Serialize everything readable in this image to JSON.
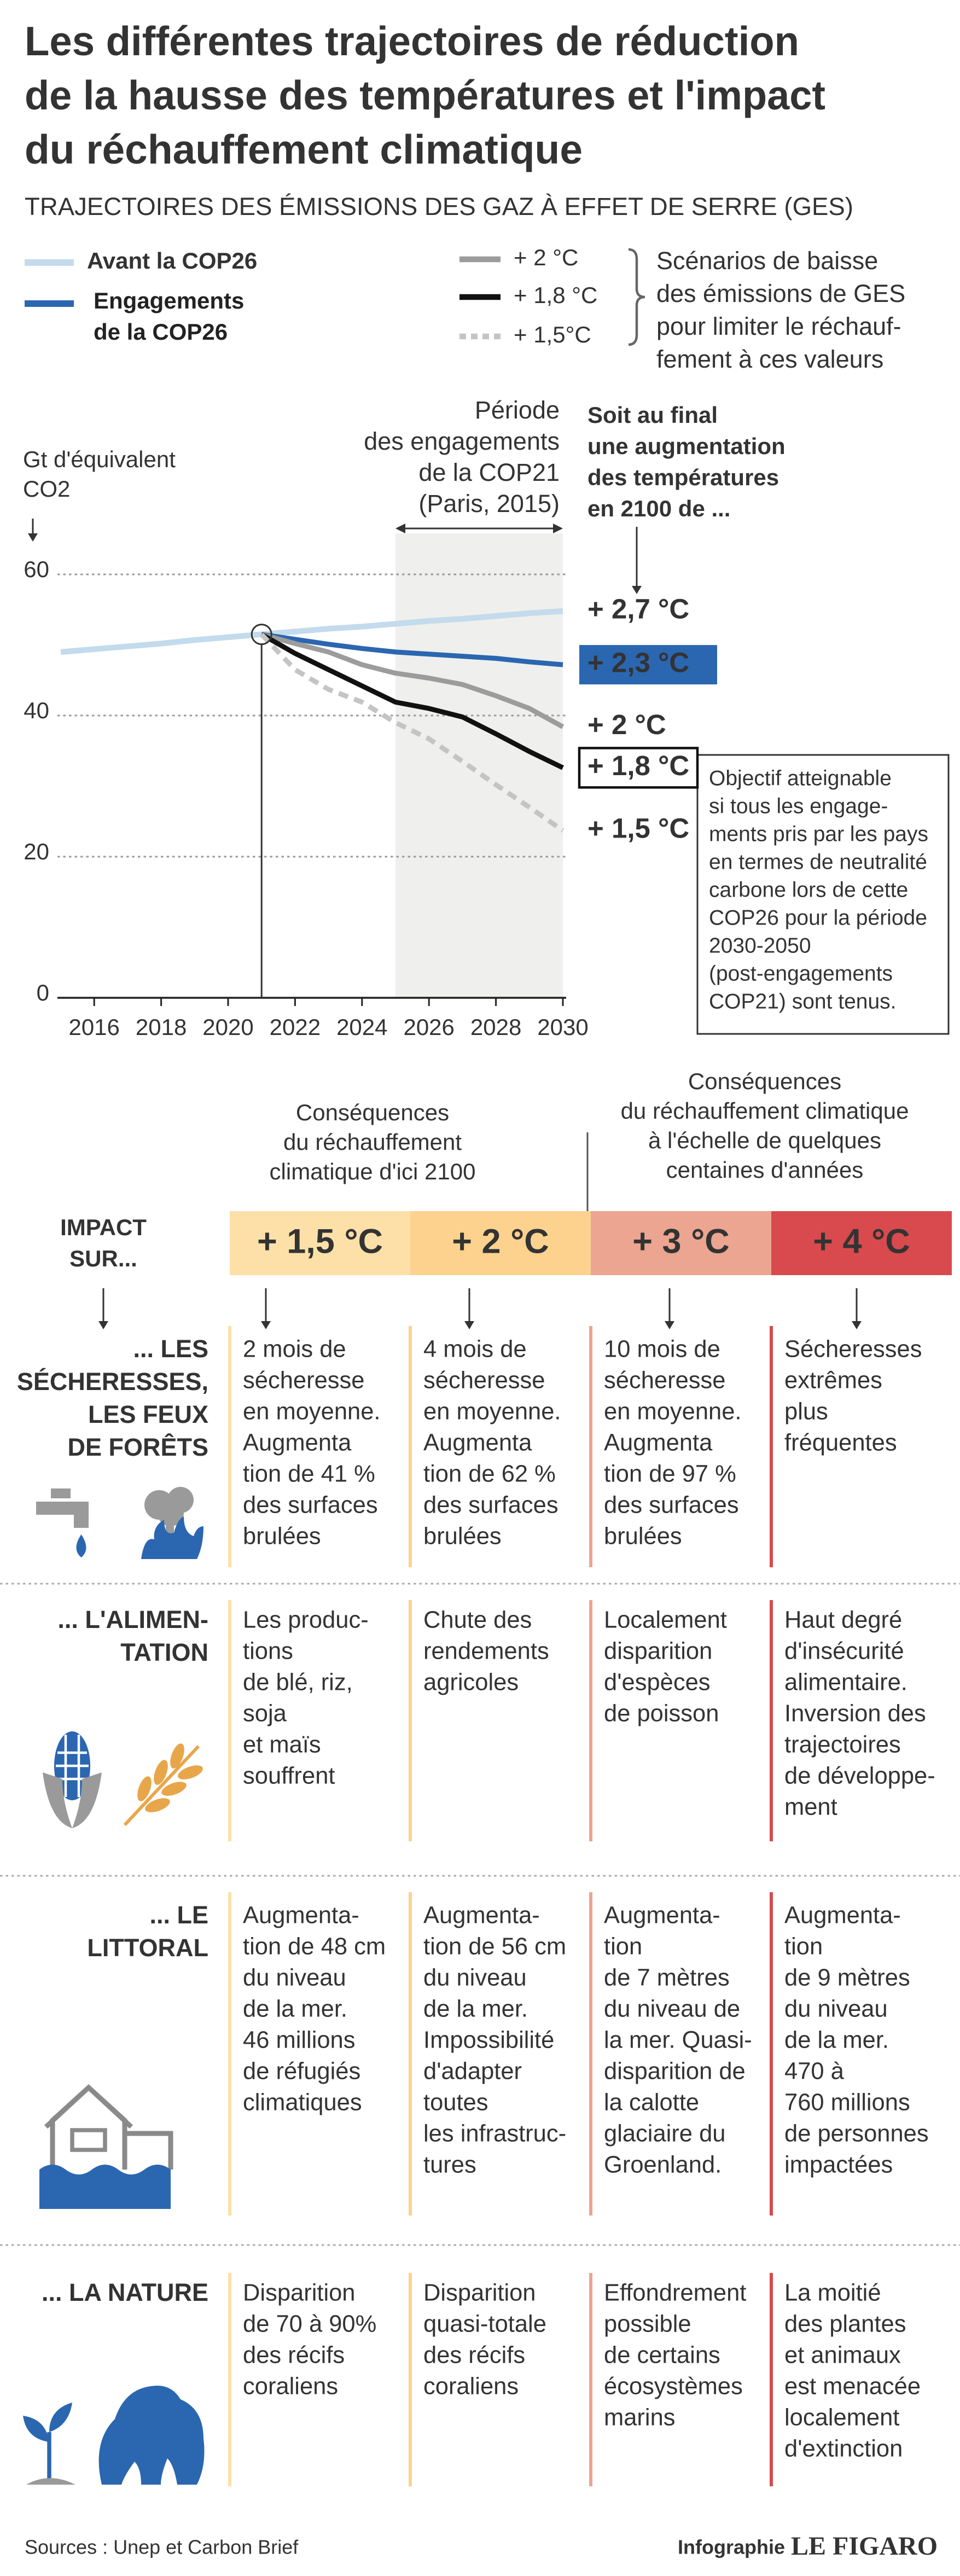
{
  "header": {
    "title": [
      "Les différentes trajectoires de réduction",
      "de la hausse des températures et l'impact",
      "du réchauffement climatique"
    ],
    "subtitle": "TRAJECTOIRES DES ÉMISSIONS DES GAZ À EFFET DE SERRE (GES)"
  },
  "chart_data": {
    "type": "line",
    "ylabel": [
      "Gt d'équivalent",
      "CO2"
    ],
    "x": [
      2015,
      2016,
      2017,
      2018,
      2019,
      2020,
      2021,
      2022,
      2023,
      2024,
      2025,
      2026,
      2027,
      2028,
      2029,
      2030
    ],
    "xlim": [
      2015,
      2030
    ],
    "xticks": [
      2016,
      2018,
      2020,
      2022,
      2024,
      2026,
      2028,
      2030
    ],
    "ylim": [
      0,
      60
    ],
    "yticks": [
      0,
      20,
      40,
      60
    ],
    "grid": true,
    "highlight_x": 2021,
    "period": {
      "start": 2025,
      "end": 2030,
      "label": [
        "Période",
        "des engagements",
        "de la COP21",
        "(Paris, 2015)"
      ]
    },
    "series": [
      {
        "name": "Avant la COP26",
        "color": "#c3dbec",
        "end_label": "+ 2,7 °C",
        "values": [
          49,
          49.4,
          49.8,
          50.2,
          50.7,
          51.1,
          51.5,
          51.9,
          52.3,
          52.6,
          53,
          53.4,
          53.7,
          54.1,
          54.5,
          54.8
        ]
      },
      {
        "name": "Engagements de la COP26",
        "color": "#2b66b0",
        "end_label": "+ 2,3 °C",
        "values": [
          null,
          null,
          null,
          null,
          null,
          null,
          51.5,
          50.8,
          50.1,
          49.5,
          49,
          48.7,
          48.4,
          48.1,
          47.6,
          47.2
        ]
      },
      {
        "name": "+ 2 °C",
        "color": "#9c9c9c",
        "end_label": "+ 2 °C",
        "values": [
          null,
          null,
          null,
          null,
          null,
          null,
          51.5,
          50.2,
          49,
          47.2,
          46,
          45.3,
          44.4,
          42.8,
          41,
          38.4
        ]
      },
      {
        "name": "+ 1,8 °C",
        "color": "#111111",
        "end_label": "+ 1,8 °C",
        "values": [
          null,
          null,
          null,
          null,
          null,
          null,
          51.5,
          48.8,
          46.5,
          44.2,
          41.9,
          41,
          39.8,
          37.4,
          34.9,
          32.6
        ]
      },
      {
        "name": "+ 1,5°C",
        "color": "#c4c4c4",
        "dash": true,
        "end_label": "+ 1,5 °C",
        "values": [
          null,
          null,
          null,
          null,
          null,
          null,
          51.5,
          46.5,
          43.7,
          41.9,
          39,
          36.7,
          33.5,
          30.2,
          27,
          23.7
        ]
      }
    ],
    "scenario_note": [
      "Scénarios de baisse",
      "des émissions de GES",
      "pour limiter le réchauf-",
      "fement à ces valeurs"
    ],
    "end_note": [
      "Soit au final",
      "une augmentation",
      "des températures",
      "en 2100 de ..."
    ],
    "objective_note": [
      "Objectif atteignable",
      "si tous les engage-",
      "ments pris par les pays",
      "en termes de neutralité",
      "carbone lors de cette",
      "COP26 pour la période",
      "2030-2050",
      "(post-engagements",
      "COP21) sont tenus."
    ]
  },
  "impact": {
    "intro": [
      "IMPACT",
      "SUR..."
    ],
    "periods": [
      [
        "Conséquences",
        "du réchauffement",
        "climatique d'ici 2100"
      ],
      [
        "Conséquences",
        "du réchauffement climatique",
        "à l'échelle de quelques",
        "centaines d'années"
      ]
    ],
    "columns": [
      {
        "label": "+ 1,5 °C",
        "color": "#fde0a8",
        "text_color": "#f0a535"
      },
      {
        "label": "+ 2 °C",
        "color": "#fcd28e",
        "text_color": "#f0a535"
      },
      {
        "label": "+ 3 °C",
        "color": "#eba590",
        "text_color": "#ffffff"
      },
      {
        "label": "+ 4 °C",
        "color": "#d84a4d",
        "text_color": "#ffffff"
      }
    ],
    "rows": [
      {
        "label": [
          "... LES",
          "SÉCHERESSES,",
          "LES FEUX",
          "DE FORÊTS"
        ],
        "cells": [
          [
            "2 mois de",
            "sécheresse",
            "en moyenne.",
            "Augmenta",
            "tion de 41 %",
            "des surfaces",
            "brulées"
          ],
          [
            "4 mois de",
            "sécheresse",
            "en moyenne.",
            "Augmenta",
            "tion de 62 %",
            "des surfaces",
            "brulées"
          ],
          [
            "10 mois de",
            "sécheresse",
            "en moyenne.",
            "Augmenta",
            "tion de 97 %",
            "des surfaces",
            "brulées"
          ],
          [
            "Sécheresses",
            "extrêmes",
            "plus",
            "fréquentes"
          ]
        ]
      },
      {
        "label": [
          "... L'ALIMEN-",
          "TATION"
        ],
        "cells": [
          [
            "Les produc-",
            "tions",
            "de blé, riz,",
            "soja",
            "et maïs",
            "souffrent"
          ],
          [
            "Chute des",
            "rendements",
            "agricoles"
          ],
          [
            "Localement",
            "disparition",
            "d'espèces",
            "de poisson"
          ],
          [
            "Haut degré",
            "d'insécurité",
            "alimentaire.",
            "Inversion des",
            "trajectoires",
            "de développe-",
            "ment"
          ]
        ]
      },
      {
        "label": [
          "... LE",
          "LITTORAL"
        ],
        "cells": [
          [
            "Augmenta-",
            "tion de 48 cm",
            "du niveau",
            "de la mer.",
            "46 millions",
            "de réfugiés",
            "climatiques"
          ],
          [
            "Augmenta-",
            "tion de 56 cm",
            "du niveau",
            "de la mer.",
            "Impossibilité",
            "d'adapter",
            "toutes",
            "les infrastruc-",
            "tures"
          ],
          [
            "Augmenta-",
            "tion",
            "de 7 mètres",
            "du niveau de",
            "la mer. Quasi-",
            "disparition de",
            "la calotte",
            "glaciaire du",
            "Groenland."
          ],
          [
            "Augmenta-",
            "tion",
            "de 9 mètres",
            "du niveau",
            "de la mer.",
            "470 à",
            "760 millions",
            "de personnes",
            "impactées"
          ]
        ]
      },
      {
        "label": [
          "... LA NATURE"
        ],
        "cells": [
          [
            "Disparition",
            "de 70 à 90%",
            "des récifs",
            "coraliens"
          ],
          [
            "Disparition",
            "quasi-totale",
            "des récifs",
            "coraliens"
          ],
          [
            "Effondrement",
            "possible",
            "de certains",
            "écosystèmes",
            "marins"
          ],
          [
            "La moitié",
            "des plantes",
            "et animaux",
            "est menacée",
            "localement",
            "d'extinction"
          ]
        ]
      }
    ]
  },
  "footer": {
    "source": "Sources : Unep et Carbon Brief",
    "credit": "Infographie",
    "brand": "LE FIGARO"
  }
}
